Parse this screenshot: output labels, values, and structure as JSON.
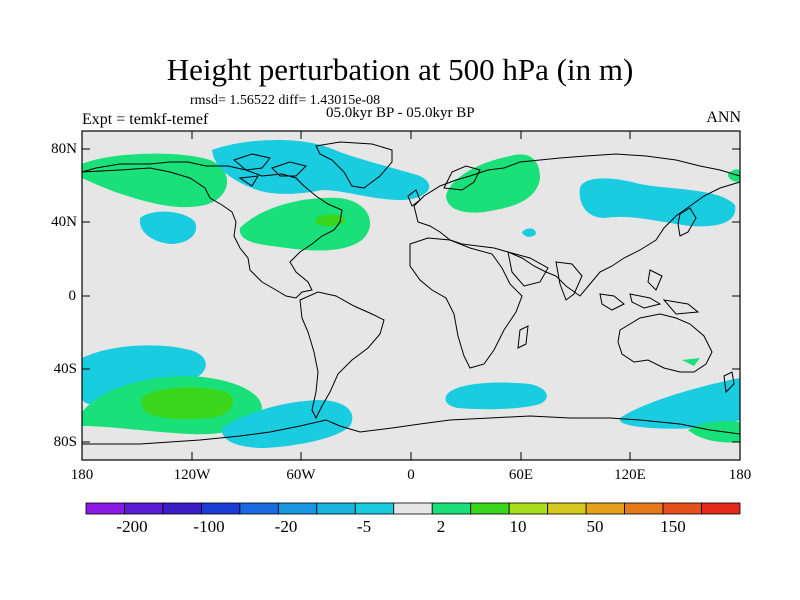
{
  "header": {
    "title": "Height perturbation at 500 hPa (in m)",
    "stats": "rmsd= 1.56522 diff= 1.43015e-08",
    "period": "05.0kyr BP - 05.0kyr BP",
    "experiment": "Expt = temkf-temef",
    "season": "ANN"
  },
  "axes": {
    "lat_ticks": [
      "80N",
      "40N",
      "0",
      "40S",
      "80S"
    ],
    "lon_ticks": [
      "180",
      "120W",
      "60W",
      "0",
      "60E",
      "120E",
      "180"
    ]
  },
  "colorbar": {
    "colors": [
      "#8a1be6",
      "#5a1cd6",
      "#3a1cc8",
      "#1c3cd8",
      "#1c6ae0",
      "#1a96e0",
      "#19b4e0",
      "#19cce0",
      "#e6e6e6",
      "#1ae07a",
      "#3ad61c",
      "#a6e01a",
      "#d6c81c",
      "#e6a01a",
      "#e67a1a",
      "#e6501a",
      "#e62a1a"
    ],
    "labels": [
      "-200",
      "-100",
      "-20",
      "-5",
      "2",
      "10",
      "50",
      "150"
    ]
  },
  "map": {
    "background": "#e6e6e6",
    "positive_color": "#1ae07a",
    "strong_positive_color": "#3ad61c",
    "negative_color": "#19cce0"
  }
}
